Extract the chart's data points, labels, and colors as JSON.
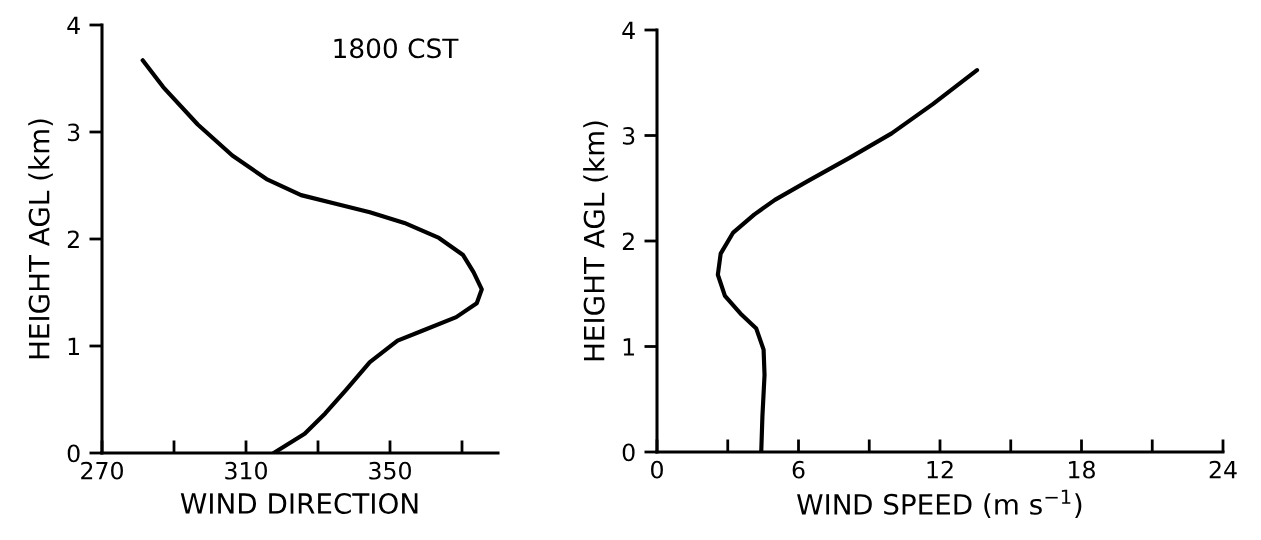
{
  "chart_data": [
    {
      "type": "line",
      "xlabel": "WIND DIRECTION",
      "ylabel": "HEIGHT AGL (km)",
      "annotations": [
        "1800 CST"
      ],
      "xlim": [
        270,
        380
      ],
      "xticks": [
        270,
        {
          "value": 290,
          "label": null
        },
        310,
        {
          "value": 330,
          "label": null
        },
        350,
        {
          "value": 370,
          "label": null
        }
      ],
      "ylim": [
        0,
        4
      ],
      "yticks": [
        0,
        1,
        2,
        3,
        4
      ],
      "grid": false,
      "legend": false,
      "series": [
        {
          "color": "#000000",
          "x": [
            281.3,
            287.0,
            296.6,
            306.2,
            315.7,
            325.3,
            334.9,
            344.4,
            354.0,
            363.6,
            370.3,
            373.2,
            375.5,
            374.1,
            368.4,
            358.8,
            352.1,
            344.4,
            337.8,
            332.0,
            326.3,
            317.7
          ],
          "values": [
            3.67,
            3.42,
            3.07,
            2.78,
            2.56,
            2.41,
            2.33,
            2.25,
            2.15,
            2.01,
            1.85,
            1.69,
            1.53,
            1.4,
            1.27,
            1.14,
            1.05,
            0.85,
            0.59,
            0.37,
            0.18,
            0.0
          ]
        }
      ]
    },
    {
      "type": "line",
      "xlabel": "WIND SPEED (m s$^{−1}$)",
      "ylabel": "HEIGHT AGL (km)",
      "xlim": [
        0,
        24
      ],
      "xticks": [
        0,
        {
          "value": 3,
          "label": null
        },
        6,
        {
          "value": 9,
          "label": null
        },
        12,
        {
          "value": 15,
          "label": null
        },
        18,
        {
          "value": 21,
          "label": null
        },
        24
      ],
      "ylim": [
        0,
        4
      ],
      "yticks": [
        0,
        1,
        2,
        3,
        4
      ],
      "grid": false,
      "legend": false,
      "series": [
        {
          "color": "#000000",
          "x": [
            13.57,
            11.71,
            9.95,
            8.18,
            6.41,
            5.0,
            4.12,
            3.23,
            2.7,
            2.58,
            2.88,
            3.59,
            4.21,
            4.52,
            4.56,
            4.47,
            4.42
          ],
          "values": [
            3.62,
            3.3,
            3.02,
            2.79,
            2.57,
            2.39,
            2.25,
            2.08,
            1.88,
            1.68,
            1.48,
            1.3,
            1.17,
            0.97,
            0.73,
            0.34,
            0.0
          ]
        }
      ]
    }
  ]
}
